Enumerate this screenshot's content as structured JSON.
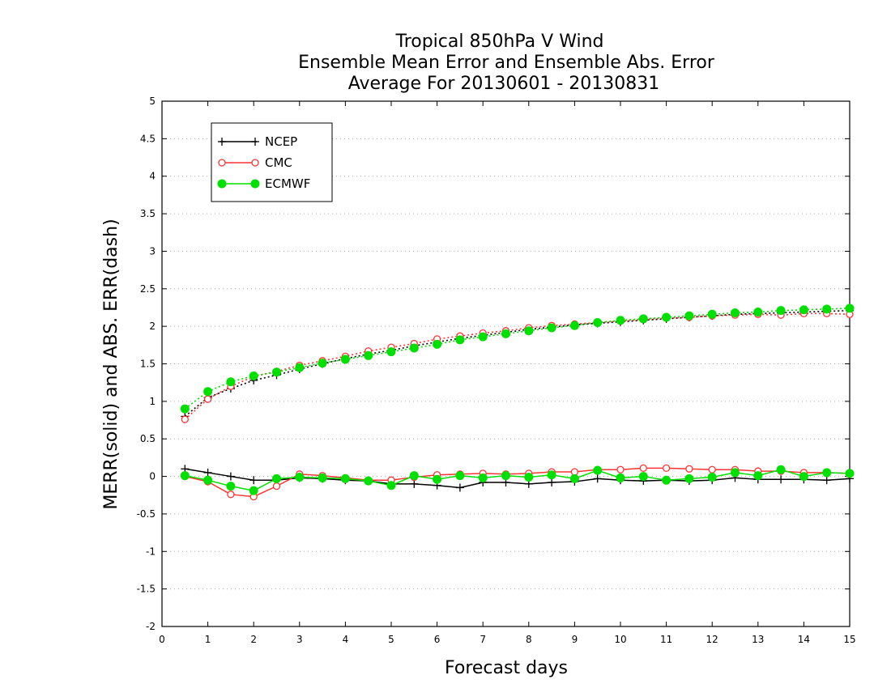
{
  "chart_data": {
    "type": "line",
    "title_lines": [
      "Tropical 850hPa V Wind",
      "Ensemble Mean Error and Ensemble Abs. Error",
      "Average For 20130601 - 20130831"
    ],
    "xlabel": "Forecast days",
    "ylabel": "MERR(solid) and ABS. ERR(dash)",
    "xlim": [
      0,
      15
    ],
    "ylim": [
      -2,
      5
    ],
    "x_ticks": [
      "0",
      "1",
      "2",
      "3",
      "4",
      "5",
      "6",
      "7",
      "8",
      "9",
      "10",
      "11",
      "12",
      "13",
      "14",
      "15"
    ],
    "y_ticks": [
      "5",
      "4.5",
      "4",
      "3.5",
      "3",
      "2.5",
      "2",
      "1.5",
      "1",
      "0.5",
      "0",
      "-0.5",
      "-1",
      "-1.5",
      "-2"
    ],
    "grid": "horizontal dotted",
    "legend_position": "top-left",
    "x": [
      0.5,
      1,
      1.5,
      2,
      2.5,
      3,
      3.5,
      4,
      4.5,
      5,
      5.5,
      6,
      6.5,
      7,
      7.5,
      8,
      8.5,
      9,
      9.5,
      10,
      10.5,
      11,
      11.5,
      12,
      12.5,
      13,
      13.5,
      14,
      14.5,
      15
    ],
    "series": [
      {
        "name": "NCEP",
        "color": "#000000",
        "marker": "plus",
        "merr": [
          0.1,
          0.05,
          0.0,
          -0.05,
          -0.05,
          -0.02,
          -0.03,
          -0.05,
          -0.06,
          -0.1,
          -0.1,
          -0.12,
          -0.15,
          -0.08,
          -0.08,
          -0.1,
          -0.08,
          -0.07,
          -0.03,
          -0.05,
          -0.06,
          -0.05,
          -0.06,
          -0.05,
          -0.02,
          -0.04,
          -0.04,
          -0.04,
          -0.05,
          -0.03
        ],
        "abs_err": [
          0.8,
          1.05,
          1.17,
          1.28,
          1.35,
          1.43,
          1.5,
          1.57,
          1.63,
          1.68,
          1.74,
          1.79,
          1.84,
          1.88,
          1.92,
          1.96,
          1.99,
          2.02,
          2.04,
          2.06,
          2.08,
          2.1,
          2.12,
          2.14,
          2.16,
          2.17,
          2.18,
          2.19,
          2.2,
          2.21
        ]
      },
      {
        "name": "CMC",
        "color": "#ff3333",
        "marker": "open-circle",
        "merr": [
          0.0,
          -0.07,
          -0.24,
          -0.27,
          -0.13,
          0.03,
          0.01,
          -0.02,
          -0.05,
          -0.05,
          -0.01,
          0.02,
          0.03,
          0.04,
          0.03,
          0.04,
          0.06,
          0.06,
          0.09,
          0.09,
          0.11,
          0.11,
          0.1,
          0.09,
          0.09,
          0.07,
          0.07,
          0.05,
          0.05,
          0.04
        ],
        "abs_err": [
          0.76,
          1.03,
          1.2,
          1.33,
          1.4,
          1.48,
          1.54,
          1.6,
          1.67,
          1.72,
          1.77,
          1.83,
          1.87,
          1.91,
          1.94,
          1.98,
          2.01,
          2.03,
          2.05,
          2.07,
          2.09,
          2.11,
          2.12,
          2.14,
          2.15,
          2.16,
          2.15,
          2.17,
          2.17,
          2.16
        ]
      },
      {
        "name": "ECMWF",
        "color": "#00e000",
        "marker": "filled-circle",
        "merr": [
          0.01,
          -0.05,
          -0.13,
          -0.19,
          -0.03,
          -0.01,
          -0.02,
          -0.03,
          -0.06,
          -0.12,
          0.01,
          -0.04,
          0.01,
          -0.02,
          0.01,
          -0.01,
          0.02,
          -0.03,
          0.08,
          -0.02,
          0.0,
          -0.05,
          -0.03,
          -0.01,
          0.05,
          0.01,
          0.09,
          0.0,
          0.05,
          0.04
        ],
        "abs_err": [
          0.9,
          1.13,
          1.26,
          1.34,
          1.39,
          1.45,
          1.51,
          1.56,
          1.61,
          1.66,
          1.71,
          1.76,
          1.82,
          1.86,
          1.9,
          1.94,
          1.98,
          2.01,
          2.05,
          2.08,
          2.1,
          2.12,
          2.14,
          2.16,
          2.18,
          2.19,
          2.21,
          2.22,
          2.23,
          2.24
        ]
      }
    ]
  }
}
